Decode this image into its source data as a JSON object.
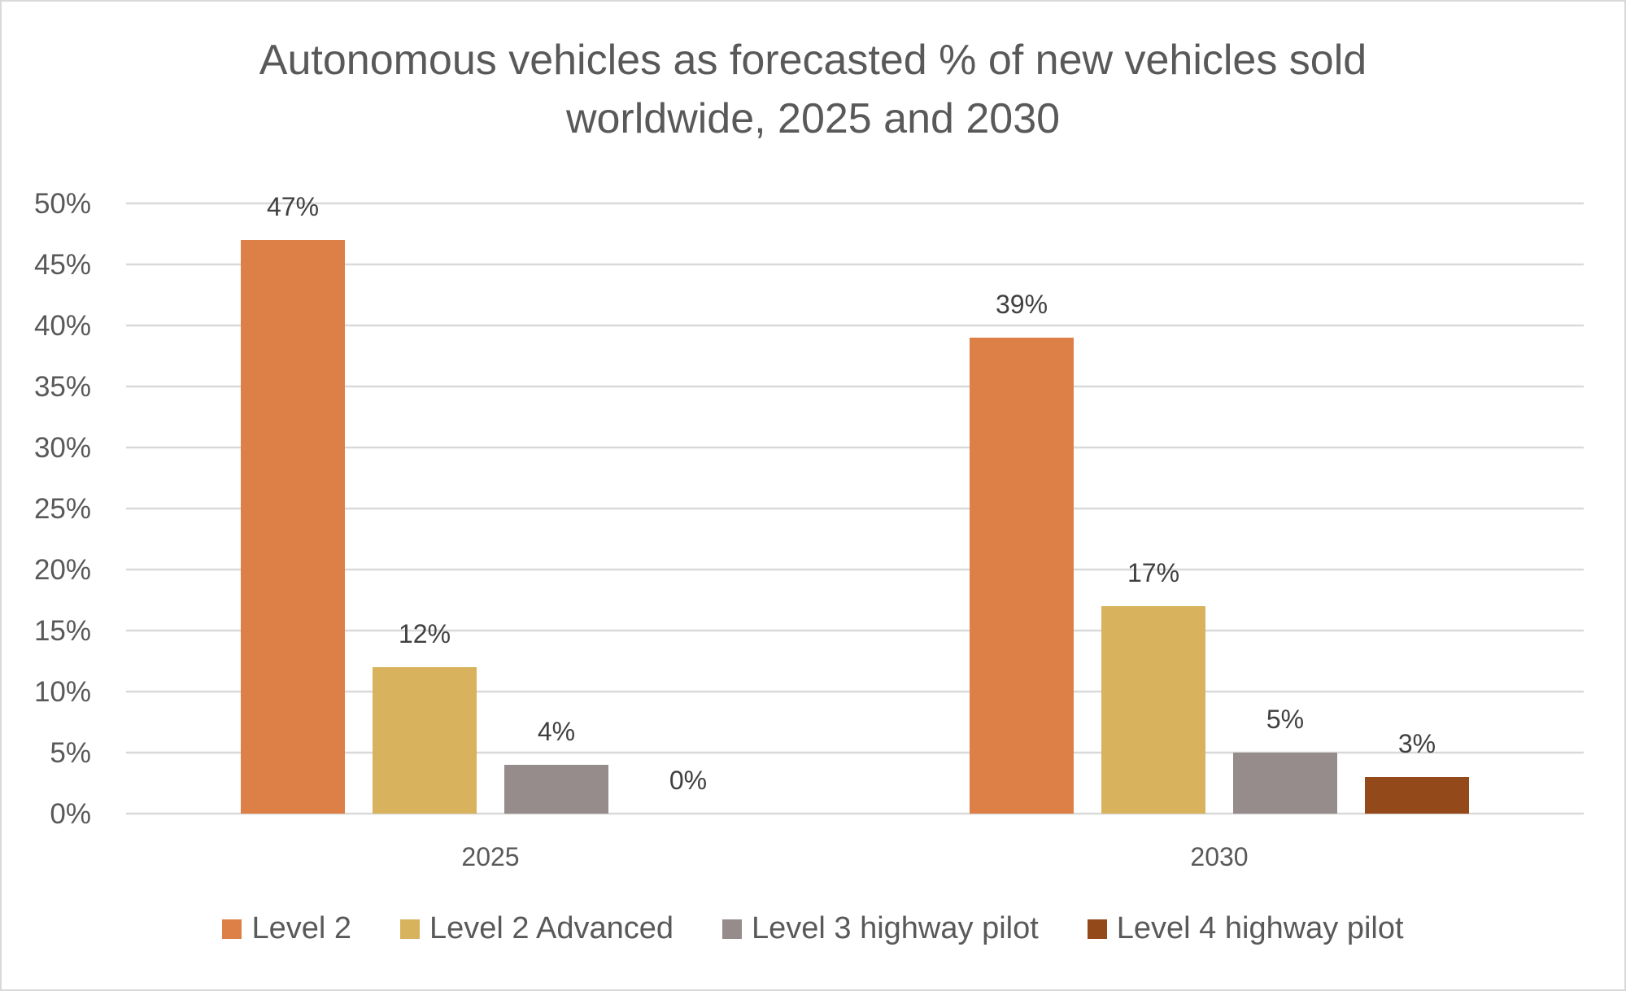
{
  "chart_data": {
    "type": "bar",
    "title": "Autonomous vehicles as forecasted % of new vehicles sold worldwide, 2025 and 2030",
    "title_lines": [
      "Autonomous vehicles as forecasted % of new vehicles sold",
      "worldwide, 2025 and 2030"
    ],
    "xlabel": "",
    "ylabel": "",
    "categories": [
      "2025",
      "2030"
    ],
    "series": [
      {
        "name": "Level 2",
        "color": "#DD8047",
        "values": [
          47,
          39
        ],
        "labels": [
          "47%",
          "39%"
        ]
      },
      {
        "name": "Level 2 Advanced",
        "color": "#D8B25C",
        "values": [
          12,
          17
        ],
        "labels": [
          "12%",
          "17%"
        ]
      },
      {
        "name": "Level 3 highway pilot",
        "color": "#968C8C",
        "values": [
          4,
          5
        ],
        "labels": [
          "4%",
          "5%"
        ]
      },
      {
        "name": "Level 4 highway pilot",
        "color": "#94491B",
        "values": [
          0,
          3
        ],
        "labels": [
          "0%",
          "3%"
        ]
      }
    ],
    "ylim": [
      0,
      50
    ],
    "yticks": [
      0,
      5,
      10,
      15,
      20,
      25,
      30,
      35,
      40,
      45,
      50
    ],
    "ytick_labels": [
      "0%",
      "5%",
      "10%",
      "15%",
      "20%",
      "25%",
      "30%",
      "35%",
      "40%",
      "45%",
      "50%"
    ],
    "grid": true,
    "legend_position": "bottom"
  }
}
